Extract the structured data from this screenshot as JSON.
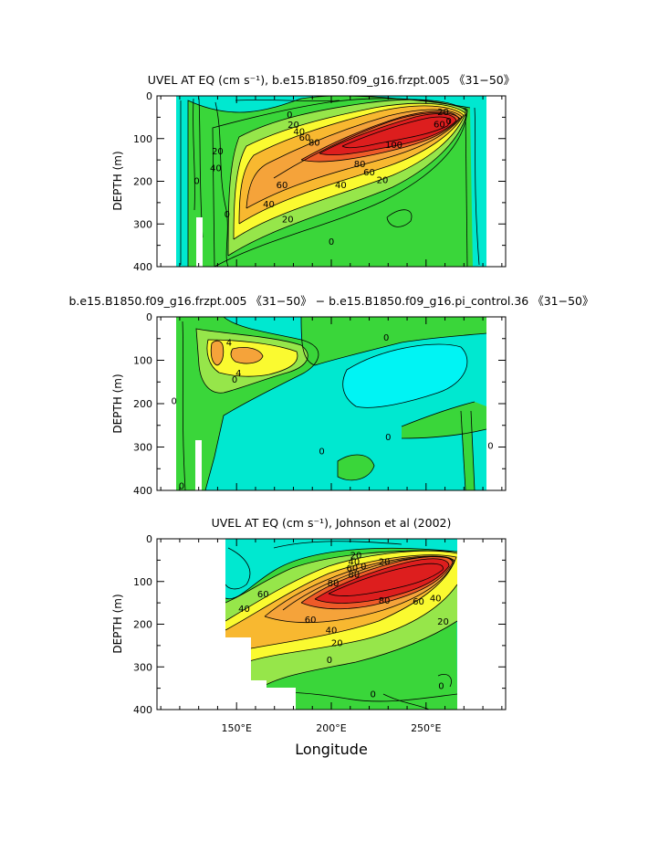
{
  "figure": {
    "xlabel": "Longitude",
    "x_ticks": [
      "150°E",
      "200°E",
      "250°E"
    ],
    "x_tick_values": [
      150,
      200,
      250
    ],
    "xlim": [
      108,
      292
    ]
  },
  "chart_data": [
    {
      "type": "heatmap",
      "title": "UVEL AT EQ (cm s⁻¹), b.e15.B1850.f09_g16.frzpt.005 《31−50》",
      "ylabel": "DEPTH (m)",
      "y_ticks": [
        "0",
        "100",
        "200",
        "300",
        "400"
      ],
      "ylim": [
        400,
        0
      ],
      "x_range_data": [
        116,
        280
      ],
      "core": {
        "lon": 228,
        "depth": 120,
        "max": 100
      },
      "contour_labels": [
        {
          "text": "0",
          "lon": 178,
          "depth": 45
        },
        {
          "text": "20",
          "lon": 180,
          "depth": 68
        },
        {
          "text": "40",
          "lon": 183,
          "depth": 85
        },
        {
          "text": "60",
          "lon": 186,
          "depth": 98
        },
        {
          "text": "80",
          "lon": 191,
          "depth": 110
        },
        {
          "text": "100",
          "lon": 233,
          "depth": 115
        },
        {
          "text": "80",
          "lon": 215,
          "depth": 160
        },
        {
          "text": "60",
          "lon": 220,
          "depth": 180
        },
        {
          "text": "60",
          "lon": 174,
          "depth": 210
        },
        {
          "text": "40",
          "lon": 167,
          "depth": 255
        },
        {
          "text": "40",
          "lon": 205,
          "depth": 210
        },
        {
          "text": "20",
          "lon": 227,
          "depth": 198
        },
        {
          "text": "20",
          "lon": 177,
          "depth": 290
        },
        {
          "text": "20",
          "lon": 140,
          "depth": 130
        },
        {
          "text": "40",
          "lon": 139,
          "depth": 170
        },
        {
          "text": "20",
          "lon": 259,
          "depth": 38
        },
        {
          "text": "60",
          "lon": 257,
          "depth": 67
        },
        {
          "text": "0",
          "lon": 145,
          "depth": 278
        },
        {
          "text": "0",
          "lon": 129,
          "depth": 200
        },
        {
          "text": "0",
          "lon": 200,
          "depth": 342
        },
        {
          "text": "0",
          "lon": 262,
          "depth": 60
        }
      ]
    },
    {
      "type": "heatmap",
      "title": "b.e15.B1850.f09_g16.frzpt.005 《31−50》 − b.e15.B1850.f09_g16.pi_control.36 《31−50》",
      "ylabel": "DEPTH (m)",
      "y_ticks": [
        "0",
        "100",
        "200",
        "300",
        "400"
      ],
      "ylim": [
        400,
        0
      ],
      "x_range_data": [
        116,
        280
      ],
      "contour_labels": [
        {
          "text": "4",
          "lon": 146,
          "depth": 60
        },
        {
          "text": "4",
          "lon": 151,
          "depth": 130
        },
        {
          "text": "0",
          "lon": 149,
          "depth": 145
        },
        {
          "text": "0",
          "lon": 229,
          "depth": 48
        },
        {
          "text": "0",
          "lon": 117,
          "depth": 195
        },
        {
          "text": "0",
          "lon": 121,
          "depth": 390
        },
        {
          "text": "0",
          "lon": 230,
          "depth": 278
        },
        {
          "text": "0",
          "lon": 195,
          "depth": 310
        },
        {
          "text": "0",
          "lon": 284,
          "depth": 298
        }
      ]
    },
    {
      "type": "heatmap",
      "title": "UVEL AT EQ (cm s⁻¹), Johnson et al (2002)",
      "ylabel": "DEPTH (m)",
      "y_ticks": [
        "0",
        "100",
        "200",
        "300",
        "400"
      ],
      "ylim": [
        400,
        0
      ],
      "x_range_data": [
        143,
        265
      ],
      "core": {
        "lon": 225,
        "depth": 110,
        "max": 100
      },
      "contour_labels": [
        {
          "text": "20",
          "lon": 213,
          "depth": 40
        },
        {
          "text": "40",
          "lon": 212,
          "depth": 55
        },
        {
          "text": "60",
          "lon": 211,
          "depth": 70
        },
        {
          "text": "80",
          "lon": 212,
          "depth": 85
        },
        {
          "text": "80",
          "lon": 201,
          "depth": 105
        },
        {
          "text": "60",
          "lon": 164,
          "depth": 130
        },
        {
          "text": "40",
          "lon": 154,
          "depth": 165
        },
        {
          "text": "80",
          "lon": 228,
          "depth": 145
        },
        {
          "text": "60",
          "lon": 246,
          "depth": 148
        },
        {
          "text": "40",
          "lon": 255,
          "depth": 140
        },
        {
          "text": "20",
          "lon": 259,
          "depth": 195
        },
        {
          "text": "60",
          "lon": 189,
          "depth": 190
        },
        {
          "text": "40",
          "lon": 200,
          "depth": 215
        },
        {
          "text": "20",
          "lon": 203,
          "depth": 245
        },
        {
          "text": "0",
          "lon": 199,
          "depth": 285
        },
        {
          "text": "0",
          "lon": 222,
          "depth": 365
        },
        {
          "text": "0",
          "lon": 258,
          "depth": 345
        },
        {
          "text": "20",
          "lon": 228,
          "depth": 55
        },
        {
          "text": "0",
          "lon": 217,
          "depth": 65
        }
      ]
    }
  ]
}
